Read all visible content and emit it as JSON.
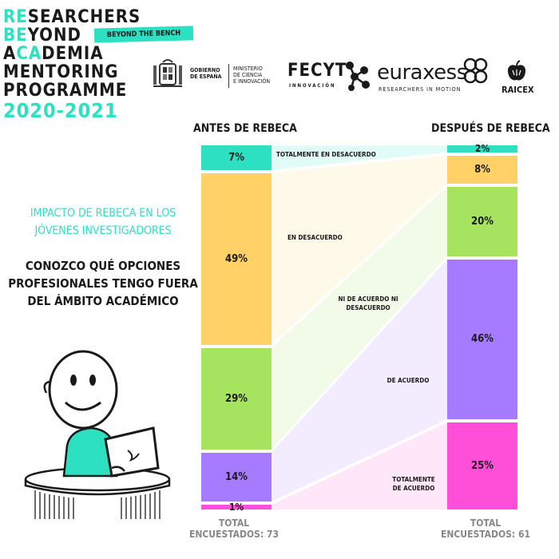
{
  "header": {
    "line1_a": "RE",
    "line1_b": "SEARCHERS",
    "line2_a": "BE",
    "line2_b": "YOND",
    "line3_a": "A",
    "line3_b": "CA",
    "line3_c": "DEMIA",
    "line4": "MENTORING",
    "line5": "PROGRAMME",
    "years": "2020-2021",
    "badge": "BEYOND THE BENCH"
  },
  "logos": {
    "gobierno": "GOBIERNO DE ESPAÑA",
    "ministerio_1": "MINISTERIO",
    "ministerio_2": "DE CIENCIA",
    "ministerio_3": "E INNOVACIÓN",
    "fecyt": "FECYT",
    "fecyt_sub": "INNOVACIÓN",
    "euraxess": "euraxess",
    "euraxess_sub": "RESEARCHERS IN MOTION",
    "raicex": "RAICEX",
    "colors": {
      "teal": "#2ee0c2",
      "dark": "#1a1a1a"
    },
    "icons": [
      "coat-of-arms-icon",
      "fecyt-dots-icon",
      "euraxess-rings-icon",
      "apple-icon"
    ]
  },
  "left_panel": {
    "impact_1": "IMPACTO DE REBECA EN LOS",
    "impact_2": "JÓVENES INVESTIGADORES",
    "statement_1": "CONOZCO QUÉ OPCIONES",
    "statement_2": "PROFESIONALES TENGO FUERA",
    "statement_3": "DEL ÁMBITO ACADÉMICO"
  },
  "chart_data": {
    "type": "bar",
    "subtype": "stacked-100-alluvial",
    "categories": [
      "ANTES DE REBECA",
      "DESPUÉS DE REBECA"
    ],
    "series": [
      {
        "name": "TOTALMENTE EN DESACUERDO",
        "values": [
          7,
          2
        ],
        "color": "#2ee0c2",
        "labels": [
          "7%",
          "2%"
        ]
      },
      {
        "name": "EN DESACUERDO",
        "values": [
          49,
          8
        ],
        "color": "#ffd166",
        "labels": [
          "49%",
          "8%"
        ]
      },
      {
        "name": "NI DE ACUERDO NI DESACUERDO",
        "values": [
          29,
          20
        ],
        "color": "#a6e35f",
        "labels": [
          "29%",
          "20%"
        ]
      },
      {
        "name": "DE ACUERDO",
        "values": [
          14,
          46
        ],
        "color": "#a77bff",
        "labels": [
          "14%",
          "46%"
        ]
      },
      {
        "name": "TOTALMENTE DE ACUERDO",
        "values": [
          1,
          25
        ],
        "color": "#ff4fd8",
        "labels": [
          "1%",
          "25%"
        ]
      }
    ],
    "flow_labels": {
      "s0": "TOTALMENTE EN DESACUERDO",
      "s1": "EN DESACUERDO",
      "s2_1": "NI DE ACUERDO NI",
      "s2_2": "DESACUERDO",
      "s3": "DE ACUERDO",
      "s4_1": "TOTALMENTE",
      "s4_2": "DE ACUERDO"
    },
    "totals": [
      {
        "line1": "TOTAL",
        "line2": "ENCUESTADOS: 73"
      },
      {
        "line1": "TOTAL",
        "line2": "ENCUESTADOS: 61"
      }
    ],
    "ylim": [
      0,
      100
    ],
    "legend": "none",
    "grid": false
  }
}
